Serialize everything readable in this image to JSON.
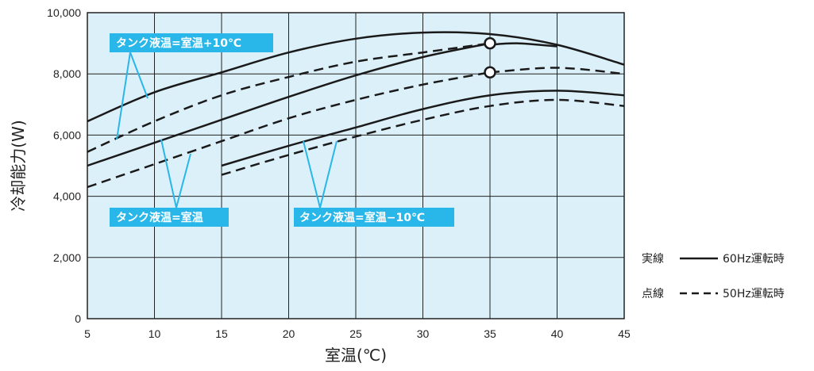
{
  "chart_data": {
    "type": "line",
    "xlabel": "室温(℃)",
    "ylabel": "冷却能力(W)",
    "xlim": [
      5,
      45
    ],
    "ylim": [
      0,
      10000
    ],
    "x_ticks": [
      "5",
      "10",
      "15",
      "20",
      "25",
      "30",
      "35",
      "40",
      "45"
    ],
    "y_ticks": [
      "0",
      "2,000",
      "4,000",
      "6,000",
      "8,000",
      "10,000"
    ],
    "grid": true,
    "colors": {
      "plot_bg": "#dcf0fa",
      "grid": "#222222",
      "line": "#1a1a1a",
      "callout": "#29b6e8"
    },
    "series": [
      {
        "group": "タンク液温=室温+10℃",
        "style": "solid",
        "points": [
          [
            5,
            6450
          ],
          [
            10,
            7400
          ],
          [
            15,
            8050
          ],
          [
            20,
            8700
          ],
          [
            25,
            9150
          ],
          [
            30,
            9350
          ],
          [
            35,
            9300
          ],
          [
            40,
            8950
          ],
          [
            45,
            8300
          ]
        ]
      },
      {
        "group": "タンク液温=室温+10℃",
        "style": "dashed",
        "points": [
          [
            5,
            5450
          ],
          [
            10,
            6450
          ],
          [
            15,
            7300
          ],
          [
            20,
            7900
          ],
          [
            25,
            8400
          ],
          [
            30,
            8700
          ],
          [
            35,
            9000
          ]
        ]
      },
      {
        "group": "タンク液温=室温+10℃",
        "style": "solid",
        "points": [
          [
            35,
            8950
          ],
          [
            37,
            9000
          ],
          [
            40,
            8900
          ]
        ]
      },
      {
        "group": "タンク液温=室温",
        "style": "solid",
        "points": [
          [
            5,
            5000
          ],
          [
            10,
            5750
          ],
          [
            15,
            6500
          ],
          [
            20,
            7250
          ],
          [
            25,
            7950
          ],
          [
            30,
            8550
          ],
          [
            35,
            9000
          ]
        ]
      },
      {
        "group": "タンク液温=室温",
        "style": "dashed",
        "points": [
          [
            5,
            4300
          ],
          [
            10,
            5050
          ],
          [
            15,
            5800
          ],
          [
            20,
            6550
          ],
          [
            25,
            7150
          ],
          [
            30,
            7650
          ],
          [
            35,
            8050
          ]
        ]
      },
      {
        "group": "タンク液温=室温",
        "style": "dashed",
        "points": [
          [
            35,
            8050
          ],
          [
            40,
            8200
          ],
          [
            45,
            8000
          ]
        ]
      },
      {
        "group": "タンク液温=室温-10℃",
        "style": "solid",
        "points": [
          [
            15,
            5000
          ],
          [
            20,
            5650
          ],
          [
            25,
            6250
          ],
          [
            30,
            6850
          ],
          [
            35,
            7300
          ],
          [
            40,
            7450
          ],
          [
            45,
            7300
          ]
        ]
      },
      {
        "group": "タンク液温=室温-10℃",
        "style": "dashed",
        "points": [
          [
            15,
            4700
          ],
          [
            20,
            5350
          ],
          [
            25,
            5950
          ],
          [
            30,
            6500
          ],
          [
            35,
            6950
          ],
          [
            40,
            7150
          ],
          [
            45,
            6950
          ]
        ]
      }
    ],
    "markers": [
      [
        35,
        9000
      ],
      [
        35,
        8050
      ]
    ],
    "callouts": [
      {
        "text": "タンク液温=室温+10℃"
      },
      {
        "text": "タンク液温=室温"
      },
      {
        "text": "タンク液温=室温−10℃"
      }
    ],
    "legend": [
      {
        "prefix": "実線",
        "style": "solid",
        "label": "60Hz運転時"
      },
      {
        "prefix": "点線",
        "style": "dashed",
        "label": "50Hz運転時"
      }
    ]
  }
}
